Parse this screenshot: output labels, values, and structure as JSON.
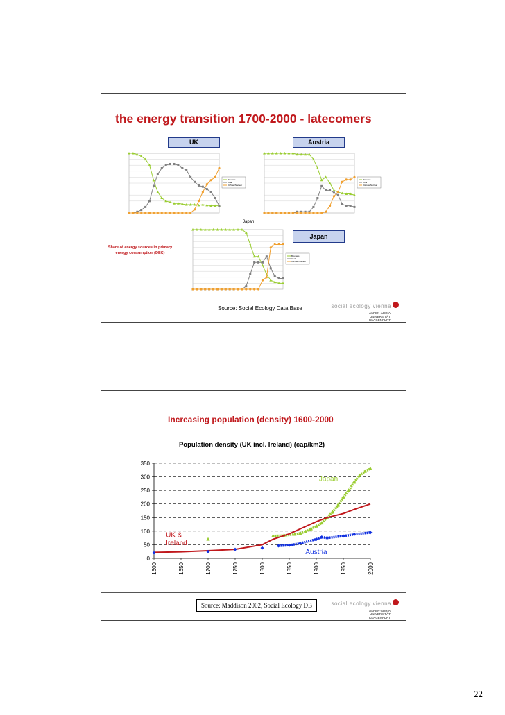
{
  "slide1": {
    "title": "the energy transition 1700-2000 - latecomers",
    "tags": {
      "uk": "UK",
      "austria": "Austria",
      "japan": "Japan"
    },
    "japan_small_title": "Japan",
    "share_text": "Share of energy sources in primary energy consumption (DEC)",
    "source": "Source: Social Ecology Data Base",
    "logo_line1": "social ecology vienna",
    "logo_line2": "ALPEN-ADRIA UNIVERSITÄT KLAGENFURT",
    "legend": [
      "Biomass",
      "Coal",
      "Oil/Gas/Nuclear"
    ],
    "colors": {
      "biomass": "#9acd32",
      "coal": "#808080",
      "oil": "#f0a030"
    }
  },
  "slide2": {
    "title": "Increasing population (density) 1600-2000",
    "source": "Source: Maddison 2002, Social Ecology DB",
    "logo_line1": "social ecology vienna",
    "logo_line2": "ALPEN-ADRIA UNIVERSITÄT KLAGENFURT"
  },
  "page_number": "22",
  "chart_data": [
    {
      "type": "line",
      "title": "UK",
      "x": [
        1750,
        1760,
        1770,
        1780,
        1790,
        1800,
        1810,
        1820,
        1830,
        1840,
        1850,
        1860,
        1870,
        1880,
        1890,
        1900,
        1910,
        1920,
        1930,
        1940,
        1950,
        1960,
        1970
      ],
      "series": [
        {
          "name": "Biomass",
          "values": [
            1.0,
            1.0,
            0.98,
            0.95,
            0.9,
            0.8,
            0.55,
            0.35,
            0.25,
            0.2,
            0.18,
            0.16,
            0.16,
            0.15,
            0.14,
            0.14,
            0.14,
            0.13,
            0.14,
            0.13,
            0.12,
            0.12,
            0.12
          ]
        },
        {
          "name": "Coal",
          "values": [
            0,
            0,
            0.02,
            0.05,
            0.1,
            0.2,
            0.45,
            0.65,
            0.75,
            0.8,
            0.82,
            0.82,
            0.8,
            0.75,
            0.72,
            0.6,
            0.52,
            0.46,
            0.44,
            0.4,
            0.35,
            0.25,
            0.12
          ]
        },
        {
          "name": "Oil/Gas/Nuclear",
          "values": [
            0,
            0,
            0,
            0,
            0,
            0,
            0,
            0,
            0,
            0,
            0,
            0,
            0,
            0,
            0,
            0,
            0.06,
            0.2,
            0.35,
            0.48,
            0.55,
            0.6,
            0.75
          ]
        }
      ],
      "ylim": [
        0,
        1
      ]
    },
    {
      "type": "line",
      "title": "Austria",
      "x": [
        1750,
        1760,
        1770,
        1780,
        1790,
        1800,
        1810,
        1820,
        1830,
        1840,
        1850,
        1860,
        1870,
        1880,
        1890,
        1900,
        1910,
        1920,
        1930,
        1940,
        1950,
        1960,
        1970
      ],
      "series": [
        {
          "name": "Biomass",
          "values": [
            1,
            1,
            1,
            1,
            1,
            1,
            1,
            1,
            0.98,
            0.98,
            0.98,
            0.98,
            0.9,
            0.75,
            0.55,
            0.6,
            0.5,
            0.38,
            0.35,
            0.33,
            0.32,
            0.32,
            0.3
          ]
        },
        {
          "name": "Coal",
          "values": [
            0,
            0,
            0,
            0,
            0,
            0,
            0,
            0,
            0.02,
            0.02,
            0.02,
            0.02,
            0.1,
            0.25,
            0.45,
            0.38,
            0.38,
            0.34,
            0.3,
            0.15,
            0.12,
            0.12,
            0.1
          ]
        },
        {
          "name": "Oil/Gas/Nuclear",
          "values": [
            0,
            0,
            0,
            0,
            0,
            0,
            0,
            0,
            0,
            0,
            0,
            0,
            0,
            0,
            0,
            0.02,
            0.12,
            0.28,
            0.35,
            0.52,
            0.56,
            0.56,
            0.6
          ]
        }
      ],
      "ylim": [
        0,
        1
      ]
    },
    {
      "type": "line",
      "title": "Japan",
      "x": [
        1750,
        1760,
        1770,
        1780,
        1790,
        1800,
        1810,
        1820,
        1830,
        1840,
        1850,
        1860,
        1870,
        1880,
        1890,
        1900,
        1910,
        1920,
        1930,
        1940,
        1950,
        1960,
        1970
      ],
      "series": [
        {
          "name": "Biomass",
          "values": [
            1,
            1,
            1,
            1,
            1,
            1,
            1,
            1,
            1,
            1,
            1,
            1,
            1,
            0.95,
            0.75,
            0.55,
            0.55,
            0.4,
            0.25,
            0.15,
            0.12,
            0.1,
            0.1
          ]
        },
        {
          "name": "Coal",
          "values": [
            0,
            0,
            0,
            0,
            0,
            0,
            0,
            0,
            0,
            0,
            0,
            0,
            0,
            0.05,
            0.25,
            0.45,
            0.45,
            0.45,
            0.55,
            0.35,
            0.22,
            0.18,
            0.18
          ]
        },
        {
          "name": "Oil/Gas/Nuclear",
          "values": [
            0,
            0,
            0,
            0,
            0,
            0,
            0,
            0,
            0,
            0,
            0,
            0,
            0,
            0,
            0,
            0,
            0,
            0.15,
            0.2,
            0.7,
            0.75,
            0.75,
            0.75
          ]
        }
      ],
      "ylim": [
        0,
        1
      ]
    },
    {
      "type": "line",
      "title": "Population density (UK incl. Ireland) (cap/km2)",
      "categories": [
        "1600",
        "1650",
        "1700",
        "1750",
        "1800",
        "1850",
        "1900",
        "1950",
        "2000"
      ],
      "yticks": [
        "0",
        "50",
        "100",
        "150",
        "200",
        "250",
        "300",
        "350"
      ],
      "xlim": [
        1600,
        2000
      ],
      "ylim": [
        0,
        350
      ],
      "series": [
        {
          "name": "Japan",
          "label": "Japan",
          "color": "#9acd32",
          "x": [
            1700,
            1820,
            1840,
            1860,
            1870,
            1880,
            1890,
            1900,
            1910,
            1920,
            1930,
            1940,
            1950,
            1960,
            1970,
            1980,
            1990,
            2000
          ],
          "values": [
            70,
            82,
            84,
            88,
            92,
            98,
            108,
            118,
            130,
            150,
            170,
            195,
            225,
            250,
            280,
            305,
            320,
            330
          ]
        },
        {
          "name": "UK & Ireland",
          "label": "UK & Ireland",
          "color": "#c0181c",
          "x": [
            1600,
            1650,
            1700,
            1750,
            1800,
            1820,
            1850,
            1870,
            1900,
            1920,
            1950,
            1970,
            2000
          ],
          "values": [
            22,
            24,
            28,
            33,
            50,
            70,
            90,
            108,
            135,
            150,
            165,
            180,
            200
          ]
        },
        {
          "name": "Austria",
          "label": "Austria",
          "color": "#1030e0",
          "x": [
            1600,
            1700,
            1750,
            1800,
            1830,
            1850,
            1870,
            1900,
            1910,
            1920,
            1950,
            1970,
            2000
          ],
          "values": [
            20,
            25,
            33,
            38,
            46,
            48,
            55,
            70,
            78,
            75,
            82,
            88,
            95
          ]
        }
      ]
    }
  ]
}
